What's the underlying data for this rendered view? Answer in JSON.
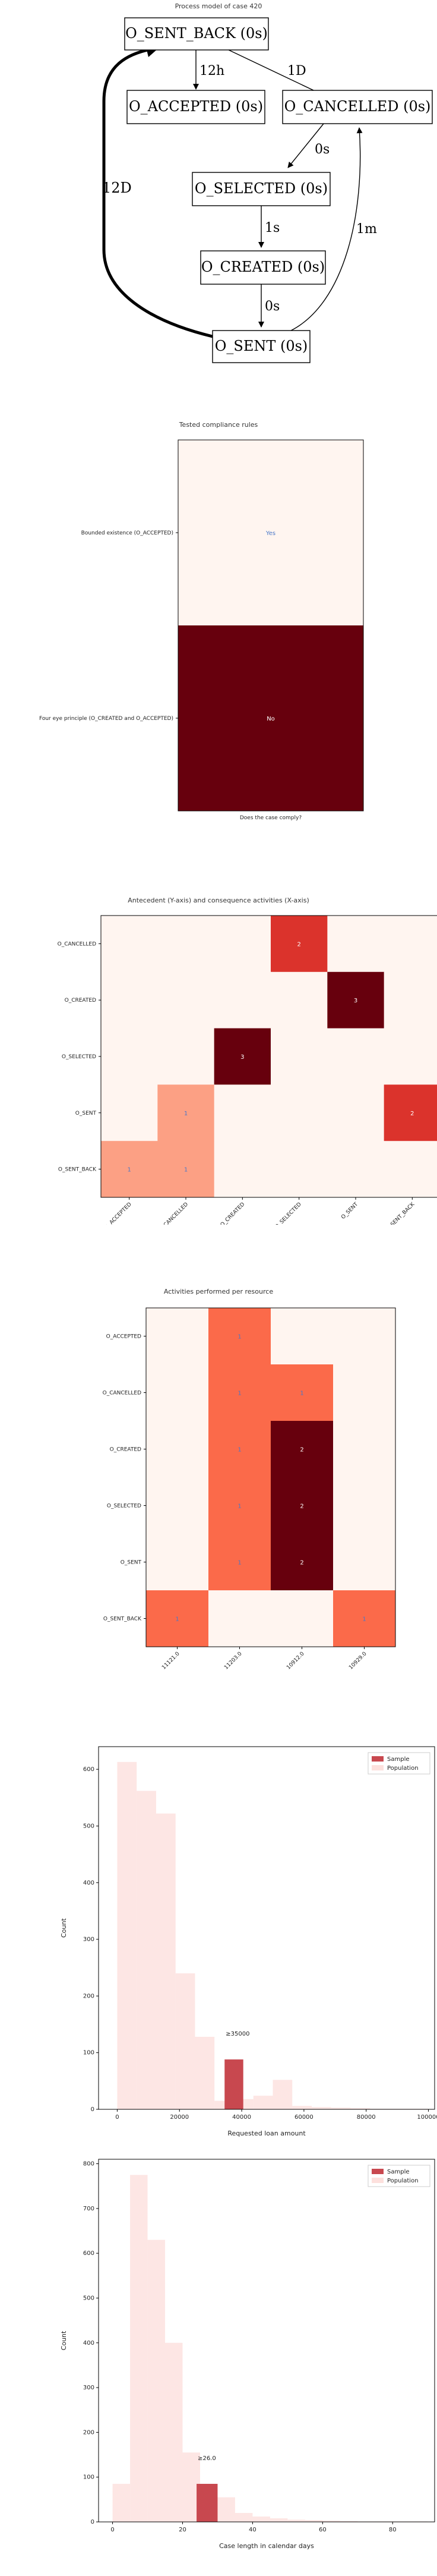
{
  "process_model": {
    "title": "Process model of case 420",
    "nodes": {
      "sent_back": "O_SENT_BACK (0s)",
      "accepted": "O_ACCEPTED (0s)",
      "cancelled": "O_CANCELLED (0s)",
      "selected": "O_SELECTED (0s)",
      "created": "O_CREATED (0s)",
      "sent": "O_SENT (0s)"
    },
    "edges": {
      "sb_acc": "12h",
      "sb_can": "1D",
      "can_sel": "0s",
      "sel_cre": "1s",
      "cre_sent": "0s",
      "sent_sb": "12D",
      "sent_can": "1m"
    }
  },
  "chart_data": [
    {
      "type": "heatmap",
      "title": "Tested compliance rules",
      "xlabel": "Does the case comply?",
      "rows": [
        "Bounded existence (O_ACCEPTED)",
        "Four eye principle (O_CREATED and O_ACCEPTED)"
      ],
      "values": [
        0,
        1
      ],
      "labels": [
        "Yes",
        "No"
      ]
    },
    {
      "type": "heatmap",
      "title": "Antecedent (Y-axis) and consequence activities (X-axis)",
      "rows": [
        "O_CANCELLED",
        "O_CREATED",
        "O_SELECTED",
        "O_SENT",
        "O_SENT_BACK"
      ],
      "cols": [
        "O_ACCEPTED",
        "O_CANCELLED",
        "O_CREATED",
        "O_SELECTED",
        "O_SENT",
        "O_SENT_BACK"
      ],
      "values": [
        [
          0,
          0,
          0,
          2,
          0,
          0
        ],
        [
          0,
          0,
          0,
          0,
          3,
          0
        ],
        [
          0,
          0,
          3,
          0,
          0,
          0
        ],
        [
          0,
          1,
          0,
          0,
          0,
          2
        ],
        [
          1,
          1,
          0,
          0,
          0,
          0
        ]
      ],
      "vmax": 3
    },
    {
      "type": "heatmap",
      "title": "Activities performed per resource",
      "rows": [
        "O_ACCEPTED",
        "O_CANCELLED",
        "O_CREATED",
        "O_SELECTED",
        "O_SENT",
        "O_SENT_BACK"
      ],
      "cols": [
        "11121.0",
        "11203.0",
        "10912.0",
        "10929.0"
      ],
      "values": [
        [
          0,
          1,
          0,
          0
        ],
        [
          0,
          1,
          1,
          0
        ],
        [
          0,
          1,
          2,
          0
        ],
        [
          0,
          1,
          2,
          0
        ],
        [
          0,
          1,
          2,
          0
        ],
        [
          1,
          0,
          0,
          1
        ]
      ],
      "vmax": 2
    },
    {
      "type": "bar",
      "xlabel": "Requested loan amount",
      "ylabel": "Count",
      "xlim": [
        -6000,
        102000
      ],
      "ylim": [
        0,
        640
      ],
      "xticks": [
        0,
        20000,
        40000,
        60000,
        80000,
        100000
      ],
      "yticks": [
        0,
        100,
        200,
        300,
        400,
        500,
        600
      ],
      "legend": [
        "Sample",
        "Population"
      ],
      "legend_position": "top-right",
      "population": {
        "bin_edges": [
          0,
          6250,
          12500,
          18750,
          25000,
          31250,
          37500,
          43750,
          50000,
          56250,
          62500,
          68750,
          75000,
          81250,
          87500,
          93750,
          100000
        ],
        "counts": [
          613,
          562,
          522,
          240,
          128,
          15,
          18,
          24,
          52,
          6,
          4,
          3,
          2,
          1,
          1,
          1
        ]
      },
      "sample": {
        "x0": 34500,
        "x1": 40500,
        "count": 88
      },
      "annotation": "≥35000"
    },
    {
      "type": "bar",
      "xlabel": "Case length in calendar days",
      "ylabel": "Count",
      "xlim": [
        -4,
        92
      ],
      "ylim": [
        0,
        810
      ],
      "xticks": [
        0,
        20,
        40,
        60,
        80
      ],
      "yticks": [
        0,
        100,
        200,
        300,
        400,
        500,
        600,
        700,
        800
      ],
      "legend": [
        "Sample",
        "Population"
      ],
      "legend_position": "top-right",
      "population": {
        "bin_edges": [
          0,
          5,
          10,
          15,
          20,
          25,
          30,
          35,
          40,
          45,
          50,
          55,
          60,
          65,
          70,
          75,
          80,
          85,
          90
        ],
        "counts": [
          85,
          775,
          630,
          400,
          155,
          65,
          55,
          20,
          12,
          8,
          5,
          4,
          3,
          2,
          1,
          1,
          1,
          1
        ]
      },
      "sample": {
        "x0": 24,
        "x1": 30,
        "count": 85
      },
      "annotation": "≥26.0"
    }
  ]
}
